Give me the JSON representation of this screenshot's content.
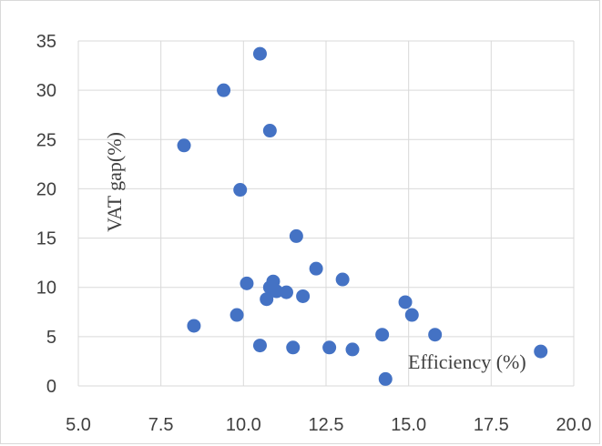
{
  "chart_data": {
    "type": "scatter",
    "xlabel": "Efficiency  (%)",
    "ylabel": "VAT  gap(%)",
    "xlim": [
      5.0,
      20.0
    ],
    "ylim": [
      0,
      35
    ],
    "x_ticks": [
      "5.0",
      "7.5",
      "10.0",
      "12.5",
      "15.0",
      "17.5",
      "20.0"
    ],
    "y_ticks": [
      "0",
      "5",
      "10",
      "15",
      "20",
      "25",
      "30",
      "35"
    ],
    "grid": "vertical and horizontal major gridlines",
    "marker_color": "#4472c4",
    "points": [
      {
        "x": 10.5,
        "y": 33.7
      },
      {
        "x": 9.4,
        "y": 30.0
      },
      {
        "x": 8.2,
        "y": 24.4
      },
      {
        "x": 10.8,
        "y": 25.9
      },
      {
        "x": 9.9,
        "y": 19.9
      },
      {
        "x": 11.6,
        "y": 15.2
      },
      {
        "x": 12.2,
        "y": 11.9
      },
      {
        "x": 13.0,
        "y": 10.8
      },
      {
        "x": 10.1,
        "y": 10.4
      },
      {
        "x": 10.9,
        "y": 10.6
      },
      {
        "x": 10.8,
        "y": 10.0
      },
      {
        "x": 11.0,
        "y": 9.6
      },
      {
        "x": 11.3,
        "y": 9.5
      },
      {
        "x": 11.8,
        "y": 9.1
      },
      {
        "x": 10.7,
        "y": 8.8
      },
      {
        "x": 9.8,
        "y": 7.2
      },
      {
        "x": 8.5,
        "y": 6.1
      },
      {
        "x": 14.9,
        "y": 8.5
      },
      {
        "x": 15.1,
        "y": 7.2
      },
      {
        "x": 15.8,
        "y": 5.2
      },
      {
        "x": 14.2,
        "y": 5.2
      },
      {
        "x": 10.5,
        "y": 4.1
      },
      {
        "x": 11.5,
        "y": 3.9
      },
      {
        "x": 12.6,
        "y": 3.9
      },
      {
        "x": 13.3,
        "y": 3.7
      },
      {
        "x": 19.0,
        "y": 3.5
      },
      {
        "x": 14.3,
        "y": 0.7
      }
    ]
  }
}
